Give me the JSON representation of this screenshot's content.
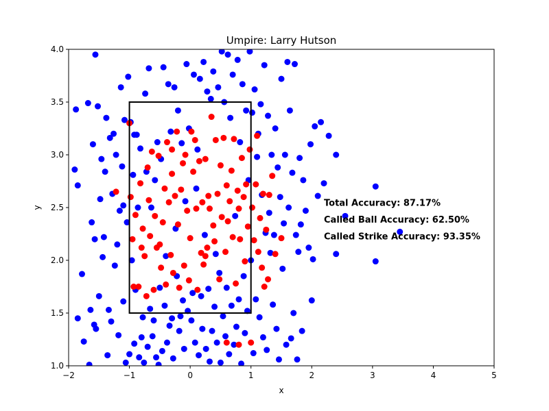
{
  "chart_data": {
    "type": "scatter",
    "title": "Umpire: Larry Hutson",
    "xlabel": "x",
    "ylabel": "y",
    "xlim": [
      -2,
      5
    ],
    "ylim": [
      1.0,
      4.0
    ],
    "xticks": [
      "−2",
      "−1",
      "0",
      "1",
      "2",
      "3",
      "4",
      "5"
    ],
    "yticks": [
      "1.0",
      "1.5",
      "2.0",
      "2.5",
      "3.0",
      "3.5",
      "4.0"
    ],
    "grid": false,
    "strike_zone": {
      "x": [
        -1,
        1
      ],
      "y": [
        1.5,
        3.5
      ]
    },
    "annotations": [
      {
        "text": "Total Accuracy: 87.17%",
        "x": 2.2,
        "y": 2.55
      },
      {
        "text": "Called Ball Accuracy: 62.50%",
        "x": 2.2,
        "y": 2.39
      },
      {
        "text": "Called Strike Accuracy: 93.35%",
        "x": 2.2,
        "y": 2.23
      }
    ],
    "series": [
      {
        "color": "#0000ff",
        "points": [
          [
            -1.9,
            2.86
          ],
          [
            -1.88,
            3.43
          ],
          [
            -1.85,
            1.45
          ],
          [
            -1.85,
            2.71
          ],
          [
            -1.78,
            1.87
          ],
          [
            -1.75,
            1.23
          ],
          [
            -1.68,
            3.49
          ],
          [
            -1.66,
            1.01
          ],
          [
            -1.64,
            1.53
          ],
          [
            -1.62,
            2.36
          ],
          [
            -1.6,
            3.1
          ],
          [
            -1.58,
            1.39
          ],
          [
            -1.57,
            2.2
          ],
          [
            -1.56,
            3.95
          ],
          [
            -1.55,
            1.35
          ],
          [
            -1.52,
            3.46
          ],
          [
            -1.5,
            1.66
          ],
          [
            -1.48,
            2.58
          ],
          [
            -1.46,
            2.96
          ],
          [
            -1.44,
            2.03
          ],
          [
            -1.42,
            2.22
          ],
          [
            -1.4,
            2.84
          ],
          [
            -1.38,
            3.35
          ],
          [
            -1.36,
            1.1
          ],
          [
            -1.34,
            1.53
          ],
          [
            -1.32,
            3.16
          ],
          [
            -1.3,
            1.42
          ],
          [
            -1.28,
            2.63
          ],
          [
            -1.26,
            3.2
          ],
          [
            -1.24,
            1.95
          ],
          [
            -1.22,
            3.0
          ],
          [
            -1.2,
            2.15
          ],
          [
            -1.18,
            1.29
          ],
          [
            -1.16,
            2.47
          ],
          [
            -1.14,
            3.64
          ],
          [
            -1.12,
            2.89
          ],
          [
            -1.1,
            1.61
          ],
          [
            -1.1,
            2.52
          ],
          [
            -1.08,
            3.33
          ],
          [
            -1.06,
            1.03
          ],
          [
            -1.04,
            2.36
          ],
          [
            -1.02,
            3.74
          ],
          [
            -1.0,
            1.11
          ],
          [
            -0.98,
            3.31
          ],
          [
            -0.96,
            2.0
          ],
          [
            -0.94,
            2.81
          ],
          [
            -0.92,
            1.21
          ],
          [
            -0.92,
            3.19
          ],
          [
            -0.9,
            1.72
          ],
          [
            -0.88,
            3.19
          ],
          [
            -0.86,
            2.5
          ],
          [
            -0.84,
            1.08
          ],
          [
            -0.82,
            3.06
          ],
          [
            -0.8,
            1.27
          ],
          [
            -0.78,
            1.46
          ],
          [
            -0.76,
            1.03
          ],
          [
            -0.74,
            3.58
          ],
          [
            -0.72,
            2.84
          ],
          [
            -0.7,
            1.18
          ],
          [
            -0.68,
            3.82
          ],
          [
            -0.66,
            1.54
          ],
          [
            -0.64,
            2.5
          ],
          [
            -0.62,
            1.28
          ],
          [
            -0.6,
            1.43
          ],
          [
            -0.58,
            2.76
          ],
          [
            -0.56,
            1.08
          ],
          [
            -0.54,
            3.12
          ],
          [
            -0.52,
            1.01
          ],
          [
            -0.5,
            1.74
          ],
          [
            -0.48,
            2.96
          ],
          [
            -0.46,
            1.14
          ],
          [
            -0.44,
            3.83
          ],
          [
            -0.42,
            1.57
          ],
          [
            -0.4,
            2.04
          ],
          [
            -0.38,
            1.22
          ],
          [
            -0.36,
            3.67
          ],
          [
            -0.34,
            1.38
          ],
          [
            -0.32,
            3.22
          ],
          [
            -0.3,
            1.45
          ],
          [
            -0.28,
            1.07
          ],
          [
            -0.26,
            3.64
          ],
          [
            -0.24,
            2.3
          ],
          [
            -0.22,
            1.85
          ],
          [
            -0.2,
            3.42
          ],
          [
            -0.18,
            1.33
          ],
          [
            -0.16,
            1.47
          ],
          [
            -0.14,
            3.11
          ],
          [
            -0.12,
            1.62
          ],
          [
            -0.1,
            1.16
          ],
          [
            -0.08,
            2.56
          ],
          [
            -0.06,
            3.86
          ],
          [
            -0.04,
            1.52
          ],
          [
            -0.02,
            3.25
          ],
          [
            0.02,
            1.43
          ],
          [
            0.04,
            1.69
          ],
          [
            0.06,
            3.76
          ],
          [
            0.08,
            1.22
          ],
          [
            0.1,
            2.68
          ],
          [
            0.12,
            3.05
          ],
          [
            0.14,
            1.1
          ],
          [
            0.16,
            3.72
          ],
          [
            0.18,
            1.66
          ],
          [
            0.2,
            1.35
          ],
          [
            0.22,
            3.88
          ],
          [
            0.24,
            2.24
          ],
          [
            0.26,
            1.16
          ],
          [
            0.28,
            3.6
          ],
          [
            0.3,
            1.73
          ],
          [
            0.32,
            1.04
          ],
          [
            0.34,
            3.53
          ],
          [
            0.36,
            1.33
          ],
          [
            0.38,
            3.79
          ],
          [
            0.4,
            1.56
          ],
          [
            0.42,
            2.06
          ],
          [
            0.44,
            1.22
          ],
          [
            0.46,
            3.64
          ],
          [
            0.48,
            1.88
          ],
          [
            0.5,
            1.03
          ],
          [
            0.52,
            3.98
          ],
          [
            0.54,
            1.47
          ],
          [
            0.56,
            3.5
          ],
          [
            0.58,
            1.28
          ],
          [
            0.6,
            1.74
          ],
          [
            0.62,
            3.95
          ],
          [
            0.64,
            1.11
          ],
          [
            0.66,
            3.35
          ],
          [
            0.68,
            1.57
          ],
          [
            0.7,
            3.76
          ],
          [
            0.72,
            1.2
          ],
          [
            0.74,
            2.42
          ],
          [
            0.76,
            1.37
          ],
          [
            0.78,
            3.9
          ],
          [
            0.8,
            1.63
          ],
          [
            0.82,
            3.12
          ],
          [
            0.84,
            1.02
          ],
          [
            0.86,
            3.67
          ],
          [
            0.88,
            1.85
          ],
          [
            0.9,
            1.31
          ],
          [
            0.92,
            3.42
          ],
          [
            0.94,
            1.52
          ],
          [
            0.96,
            2.76
          ],
          [
            0.98,
            3.98
          ],
          [
            1.0,
            2.0
          ],
          [
            1.02,
            3.4
          ],
          [
            1.04,
            1.12
          ],
          [
            1.06,
            3.62
          ],
          [
            1.08,
            1.63
          ],
          [
            1.1,
            2.98
          ],
          [
            1.12,
            3.2
          ],
          [
            1.14,
            1.46
          ],
          [
            1.16,
            3.48
          ],
          [
            1.18,
            2.62
          ],
          [
            1.2,
            1.27
          ],
          [
            1.22,
            3.85
          ],
          [
            1.24,
            2.26
          ],
          [
            1.26,
            1.15
          ],
          [
            1.28,
            3.37
          ],
          [
            1.3,
            2.45
          ],
          [
            1.32,
            2.07
          ],
          [
            1.34,
            3.0
          ],
          [
            1.36,
            1.58
          ],
          [
            1.38,
            2.24
          ],
          [
            1.4,
            3.25
          ],
          [
            1.42,
            1.35
          ],
          [
            1.44,
            2.88
          ],
          [
            1.46,
            1.06
          ],
          [
            1.48,
            2.6
          ],
          [
            1.5,
            3.72
          ],
          [
            1.52,
            1.92
          ],
          [
            1.54,
            2.35
          ],
          [
            1.56,
            3.0
          ],
          [
            1.58,
            1.2
          ],
          [
            1.6,
            3.88
          ],
          [
            1.62,
            2.5
          ],
          [
            1.64,
            3.42
          ],
          [
            1.66,
            1.26
          ],
          [
            1.68,
            2.83
          ],
          [
            1.7,
            1.5
          ],
          [
            1.72,
            3.86
          ],
          [
            1.74,
            2.24
          ],
          [
            1.76,
            1.06
          ],
          [
            1.78,
            2.08
          ],
          [
            1.8,
            2.97
          ],
          [
            1.82,
            2.34
          ],
          [
            1.84,
            1.33
          ],
          [
            1.86,
            2.76
          ],
          [
            1.9,
            2.47
          ],
          [
            1.95,
            2.12
          ],
          [
            1.98,
            3.1
          ],
          [
            2.0,
            1.62
          ],
          [
            2.02,
            2.01
          ],
          [
            2.05,
            3.27
          ],
          [
            2.1,
            2.61
          ],
          [
            2.15,
            3.31
          ],
          [
            2.2,
            2.73
          ],
          [
            2.28,
            3.18
          ],
          [
            2.4,
            3.0
          ],
          [
            2.4,
            2.06
          ],
          [
            2.55,
            2.42
          ],
          [
            3.05,
            2.7
          ],
          [
            3.05,
            1.99
          ],
          [
            3.45,
            2.27
          ]
        ]
      },
      {
        "color": "#ff0000",
        "points": [
          [
            -1.22,
            2.65
          ],
          [
            -1.0,
            3.3
          ],
          [
            -0.98,
            2.6
          ],
          [
            -0.95,
            2.2
          ],
          [
            -0.93,
            1.75
          ],
          [
            -0.9,
            2.43
          ],
          [
            -0.85,
            1.75
          ],
          [
            -0.82,
            2.73
          ],
          [
            -0.8,
            2.12
          ],
          [
            -0.78,
            2.3
          ],
          [
            -0.75,
            2.04
          ],
          [
            -0.72,
            1.66
          ],
          [
            -0.7,
            2.88
          ],
          [
            -0.68,
            2.57
          ],
          [
            -0.66,
            2.23
          ],
          [
            -0.63,
            3.03
          ],
          [
            -0.6,
            1.72
          ],
          [
            -0.58,
            2.42
          ],
          [
            -0.55,
            2.12
          ],
          [
            -0.52,
            2.99
          ],
          [
            -0.48,
            1.93
          ],
          [
            -0.45,
            2.36
          ],
          [
            -0.42,
            2.68
          ],
          [
            -0.4,
            1.77
          ],
          [
            -0.38,
            3.12
          ],
          [
            -0.35,
            2.55
          ],
          [
            -0.32,
            2.05
          ],
          [
            -0.3,
            2.82
          ],
          [
            -0.28,
            1.88
          ],
          [
            -0.25,
            2.61
          ],
          [
            -0.22,
            3.22
          ],
          [
            -0.2,
            2.34
          ],
          [
            -0.18,
            1.74
          ],
          [
            -0.15,
            2.67
          ],
          [
            -0.12,
            2.92
          ],
          [
            -0.1,
            1.95
          ],
          [
            -0.08,
            3.0
          ],
          [
            -0.05,
            2.47
          ],
          [
            -0.02,
            1.81
          ],
          [
            0.0,
            2.21
          ],
          [
            0.02,
            3.22
          ],
          [
            0.05,
            2.84
          ],
          [
            0.08,
            3.14
          ],
          [
            0.1,
            2.49
          ],
          [
            0.12,
            1.72
          ],
          [
            0.15,
            2.94
          ],
          [
            0.18,
            2.07
          ],
          [
            0.2,
            2.55
          ],
          [
            0.22,
            1.96
          ],
          [
            0.25,
            2.96
          ],
          [
            0.28,
            2.12
          ],
          [
            0.3,
            2.61
          ],
          [
            0.32,
            2.49
          ],
          [
            0.35,
            3.36
          ],
          [
            0.38,
            2.33
          ],
          [
            0.4,
            2.18
          ],
          [
            0.42,
            3.14
          ],
          [
            0.45,
            2.63
          ],
          [
            0.48,
            1.82
          ],
          [
            0.5,
            2.9
          ],
          [
            0.52,
            2.41
          ],
          [
            0.55,
            3.16
          ],
          [
            0.58,
            2.08
          ],
          [
            0.6,
            2.71
          ],
          [
            0.62,
            2.37
          ],
          [
            0.65,
            2.56
          ],
          [
            0.68,
            2.85
          ],
          [
            0.7,
            2.22
          ],
          [
            0.72,
            3.15
          ],
          [
            0.75,
            1.78
          ],
          [
            0.78,
            2.66
          ],
          [
            0.8,
            2.49
          ],
          [
            0.82,
            2.2
          ],
          [
            0.85,
            2.97
          ],
          [
            0.88,
            2.6
          ],
          [
            0.9,
            1.99
          ],
          [
            0.92,
            2.72
          ],
          [
            0.95,
            2.32
          ],
          [
            0.98,
            3.05
          ],
          [
            1.0,
            1.22
          ],
          [
            1.02,
            2.5
          ],
          [
            1.05,
            2.19
          ],
          [
            1.08,
            2.72
          ],
          [
            1.1,
            3.18
          ],
          [
            1.12,
            2.08
          ],
          [
            1.15,
            2.4
          ],
          [
            1.18,
            1.93
          ],
          [
            1.2,
            2.63
          ],
          [
            1.22,
            1.75
          ],
          [
            1.25,
            2.29
          ],
          [
            1.28,
            1.82
          ],
          [
            1.3,
            2.62
          ],
          [
            1.35,
            2.8
          ],
          [
            1.4,
            2.06
          ],
          [
            1.5,
            2.21
          ],
          [
            0.25,
            2.04
          ],
          [
            -0.5,
            2.15
          ],
          [
            0.6,
            1.22
          ],
          [
            0.8,
            1.2
          ],
          [
            -0.3,
            3.05
          ]
        ]
      }
    ]
  }
}
